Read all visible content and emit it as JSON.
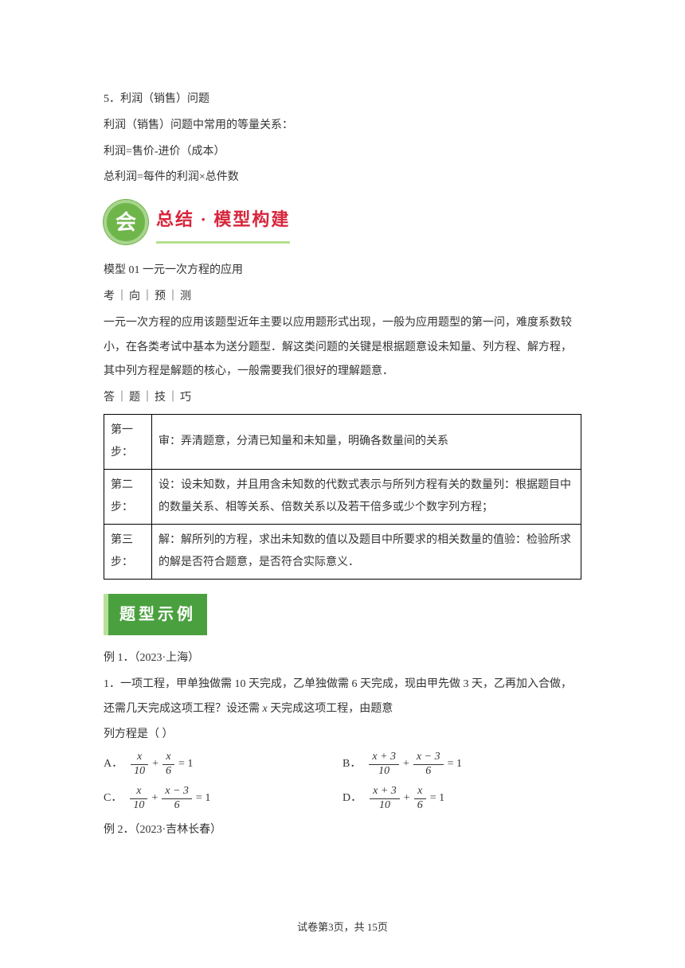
{
  "section5": {
    "title": "5．利润（销售）问题",
    "line1": "利润（销售）问题中常用的等量关系：",
    "line2": "利润=售价-进价（成本）",
    "line3": "总利润=每件的利润×总件数"
  },
  "hui_badge": {
    "circle": "会",
    "text": "总结 · 模型构建",
    "circle_bg": "#6fb64a",
    "circle_border": "#a8d48f",
    "text_color": "#d7263d",
    "underline_color": "#b4e08c"
  },
  "model": {
    "title": "模型 01 一元一次方程的应用",
    "kaoxiang": "考｜向｜预｜测",
    "desc": "一元一次方程的应用该题型近年主要以应用题形式出现，一般为应用题型的第一问，难度系数较小，在各类考试中基本为送分题型．解这类问题的关键是根据题意设未知量、列方程、解方程，其中列方程是解题的核心，一般需要我们很好的理解题意．",
    "datiji": "答｜题｜技｜巧"
  },
  "steps": {
    "rows": [
      {
        "left_a": "第一",
        "left_b": "步：",
        "right": "审：弄清题意，分清已知量和未知量，明确各数量间的关系"
      },
      {
        "left_a": "第二",
        "left_b": "步：",
        "right": "设：设未知数，并且用含未知数的代数式表示与所列方程有关的数量列：根据题目中的数量关系、相等关系、倍数关系以及若干倍多或少个数字列方程；"
      },
      {
        "left_a": "第三",
        "left_b": "步：",
        "right": "解：解所列的方程，求出未知数的值以及题目中所要求的相关数量的值验：检验所求的解是否符合题意，是否符合实际意义．"
      }
    ]
  },
  "example_badge": "题型示例",
  "ex1": {
    "header": "例 1．（2023·上海）",
    "q_num": "1．一项工程，甲单独做需 10 天完成，乙单独做需 6 天完成，现由甲先做 3 天，乙再加入合做，还需几天完成这项工程？设还需 ",
    "q_var": "x",
    "q_tail": " 天完成这项工程，由题意",
    "q_line2": "列方程是（    ）"
  },
  "options": {
    "A": "A．",
    "B": "B．",
    "C": "C．",
    "D": "D．"
  },
  "ex2": "例 2．（2023·吉林长春）",
  "footer": {
    "left": "试卷第3页，",
    "right": "共 15页"
  },
  "colors": {
    "text": "#333333",
    "badge_bg": "#4aa03f",
    "badge_border": "#b7e09a"
  }
}
